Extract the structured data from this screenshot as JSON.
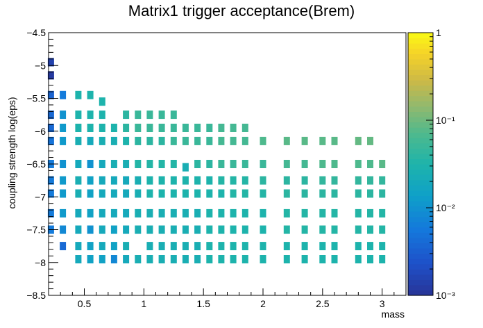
{
  "chart_data": {
    "type": "heatmap",
    "title": "Matrix1 trigger acceptance(Brem)",
    "xlabel": "mass",
    "ylabel": "coupling strength log(eps)",
    "xlim": [
      0.2,
      3.2
    ],
    "ylim": [
      -8.5,
      -4.5
    ],
    "x_ticks": [
      "0.5",
      "1",
      "1.5",
      "2",
      "2.5",
      "3"
    ],
    "x_tick_values": [
      0.5,
      1,
      1.5,
      2,
      2.5,
      3
    ],
    "y_ticks": [
      "−4.5",
      "−5",
      "−5.5",
      "−6",
      "−6.5",
      "−7",
      "−7.5",
      "−8",
      "−8.5"
    ],
    "y_tick_values": [
      -4.5,
      -5,
      -5.5,
      -6,
      -6.5,
      -7,
      -7.5,
      -8,
      -8.5
    ],
    "z_scale": "log",
    "zlim": [
      0.001,
      1
    ],
    "colorbar_ticks": [
      "10⁻³",
      "10⁻²",
      "10⁻¹",
      "1"
    ],
    "colorbar_tick_values": [
      0.001,
      0.01,
      0.1,
      1
    ],
    "cells": [
      [
        0.22,
        -4.95,
        0.0015
      ],
      [
        0.22,
        -5.15,
        0.0012
      ],
      [
        0.22,
        -5.45,
        0.0035
      ],
      [
        0.22,
        -5.75,
        0.004
      ],
      [
        0.22,
        -5.95,
        0.004
      ],
      [
        0.22,
        -6.15,
        0.005
      ],
      [
        0.22,
        -6.5,
        0.006
      ],
      [
        0.22,
        -6.75,
        0.006
      ],
      [
        0.22,
        -6.95,
        0.006
      ],
      [
        0.22,
        -7.25,
        0.006
      ],
      [
        0.22,
        -7.5,
        0.006
      ],
      [
        0.32,
        -5.45,
        0.006
      ],
      [
        0.32,
        -5.75,
        0.01
      ],
      [
        0.32,
        -5.95,
        0.012
      ],
      [
        0.32,
        -6.15,
        0.012
      ],
      [
        0.32,
        -6.5,
        0.01
      ],
      [
        0.32,
        -6.75,
        0.012
      ],
      [
        0.32,
        -6.95,
        0.012
      ],
      [
        0.32,
        -7.25,
        0.012
      ],
      [
        0.32,
        -7.5,
        0.008
      ],
      [
        0.32,
        -7.75,
        0.004
      ],
      [
        0.45,
        -5.45,
        0.03
      ],
      [
        0.45,
        -5.75,
        0.03
      ],
      [
        0.45,
        -5.95,
        0.03
      ],
      [
        0.45,
        -6.15,
        0.025
      ],
      [
        0.45,
        -6.5,
        0.02
      ],
      [
        0.45,
        -6.75,
        0.025
      ],
      [
        0.45,
        -6.95,
        0.025
      ],
      [
        0.45,
        -7.25,
        0.02
      ],
      [
        0.45,
        -7.5,
        0.02
      ],
      [
        0.45,
        -7.75,
        0.02
      ],
      [
        0.45,
        -7.95,
        0.02
      ],
      [
        0.55,
        -5.45,
        0.03
      ],
      [
        0.55,
        -5.75,
        0.03
      ],
      [
        0.55,
        -5.95,
        0.03
      ],
      [
        0.55,
        -6.15,
        0.02
      ],
      [
        0.55,
        -6.5,
        0.01
      ],
      [
        0.55,
        -6.75,
        0.015
      ],
      [
        0.55,
        -6.95,
        0.015
      ],
      [
        0.55,
        -7.25,
        0.015
      ],
      [
        0.55,
        -7.5,
        0.01
      ],
      [
        0.55,
        -7.75,
        0.015
      ],
      [
        0.55,
        -7.95,
        0.015
      ],
      [
        0.65,
        -5.55,
        0.03
      ],
      [
        0.65,
        -5.75,
        0.03
      ],
      [
        0.65,
        -5.95,
        0.03
      ],
      [
        0.65,
        -6.15,
        0.025
      ],
      [
        0.65,
        -6.5,
        0.02
      ],
      [
        0.65,
        -6.75,
        0.02
      ],
      [
        0.65,
        -6.95,
        0.02
      ],
      [
        0.65,
        -7.25,
        0.02
      ],
      [
        0.65,
        -7.5,
        0.02
      ],
      [
        0.65,
        -7.75,
        0.02
      ],
      [
        0.65,
        -7.95,
        0.015
      ],
      [
        0.75,
        -5.95,
        0.03
      ],
      [
        0.75,
        -6.15,
        0.025
      ],
      [
        0.75,
        -6.5,
        0.025
      ],
      [
        0.75,
        -6.75,
        0.02
      ],
      [
        0.75,
        -6.95,
        0.02
      ],
      [
        0.75,
        -7.25,
        0.02
      ],
      [
        0.75,
        -7.5,
        0.015
      ],
      [
        0.75,
        -7.75,
        0.015
      ],
      [
        0.75,
        -7.95,
        0.008
      ],
      [
        0.85,
        -5.75,
        0.04
      ],
      [
        0.85,
        -5.95,
        0.04
      ],
      [
        0.85,
        -6.15,
        0.03
      ],
      [
        0.85,
        -6.5,
        0.025
      ],
      [
        0.85,
        -6.75,
        0.02
      ],
      [
        0.85,
        -6.95,
        0.02
      ],
      [
        0.85,
        -7.25,
        0.02
      ],
      [
        0.85,
        -7.5,
        0.02
      ],
      [
        0.85,
        -7.75,
        0.025
      ],
      [
        0.85,
        -7.95,
        0.02
      ],
      [
        0.95,
        -5.75,
        0.05
      ],
      [
        0.95,
        -5.95,
        0.05
      ],
      [
        0.95,
        -6.15,
        0.04
      ],
      [
        0.95,
        -6.5,
        0.035
      ],
      [
        0.95,
        -6.75,
        0.025
      ],
      [
        0.95,
        -6.95,
        0.025
      ],
      [
        0.95,
        -7.25,
        0.025
      ],
      [
        0.95,
        -7.5,
        0.025
      ],
      [
        0.95,
        -7.95,
        0.025
      ],
      [
        1.05,
        -5.75,
        0.05
      ],
      [
        1.05,
        -5.95,
        0.05
      ],
      [
        1.05,
        -6.15,
        0.04
      ],
      [
        1.05,
        -6.5,
        0.035
      ],
      [
        1.05,
        -6.75,
        0.03
      ],
      [
        1.05,
        -6.95,
        0.03
      ],
      [
        1.05,
        -7.25,
        0.025
      ],
      [
        1.05,
        -7.5,
        0.025
      ],
      [
        1.05,
        -7.75,
        0.025
      ],
      [
        1.05,
        -7.95,
        0.025
      ],
      [
        1.15,
        -5.75,
        0.05
      ],
      [
        1.15,
        -5.95,
        0.05
      ],
      [
        1.15,
        -6.15,
        0.04
      ],
      [
        1.15,
        -6.5,
        0.035
      ],
      [
        1.15,
        -6.75,
        0.03
      ],
      [
        1.15,
        -6.95,
        0.03
      ],
      [
        1.15,
        -7.25,
        0.025
      ],
      [
        1.15,
        -7.5,
        0.025
      ],
      [
        1.15,
        -7.75,
        0.025
      ],
      [
        1.15,
        -7.95,
        0.025
      ],
      [
        1.25,
        -5.75,
        0.05
      ],
      [
        1.25,
        -5.95,
        0.05
      ],
      [
        1.25,
        -6.15,
        0.05
      ],
      [
        1.25,
        -6.5,
        0.035
      ],
      [
        1.25,
        -6.75,
        0.03
      ],
      [
        1.25,
        -6.95,
        0.03
      ],
      [
        1.25,
        -7.25,
        0.025
      ],
      [
        1.25,
        -7.5,
        0.025
      ],
      [
        1.25,
        -7.75,
        0.025
      ],
      [
        1.25,
        -7.95,
        0.025
      ],
      [
        1.35,
        -5.95,
        0.05
      ],
      [
        1.35,
        -6.15,
        0.05
      ],
      [
        1.35,
        -6.55,
        0.025
      ],
      [
        1.35,
        -6.75,
        0.03
      ],
      [
        1.35,
        -6.95,
        0.03
      ],
      [
        1.35,
        -7.25,
        0.025
      ],
      [
        1.35,
        -7.5,
        0.025
      ],
      [
        1.35,
        -7.75,
        0.025
      ],
      [
        1.35,
        -7.95,
        0.025
      ],
      [
        1.45,
        -5.95,
        0.05
      ],
      [
        1.45,
        -6.15,
        0.05
      ],
      [
        1.45,
        -6.5,
        0.04
      ],
      [
        1.45,
        -6.75,
        0.03
      ],
      [
        1.45,
        -6.95,
        0.03
      ],
      [
        1.45,
        -7.25,
        0.025
      ],
      [
        1.45,
        -7.5,
        0.025
      ],
      [
        1.45,
        -7.75,
        0.025
      ],
      [
        1.45,
        -7.95,
        0.025
      ],
      [
        1.55,
        -5.95,
        0.05
      ],
      [
        1.55,
        -6.15,
        0.05
      ],
      [
        1.55,
        -6.5,
        0.04
      ],
      [
        1.55,
        -6.75,
        0.03
      ],
      [
        1.55,
        -6.95,
        0.03
      ],
      [
        1.55,
        -7.25,
        0.03
      ],
      [
        1.55,
        -7.5,
        0.03
      ],
      [
        1.55,
        -7.75,
        0.03
      ],
      [
        1.55,
        -7.95,
        0.03
      ],
      [
        1.65,
        -5.95,
        0.06
      ],
      [
        1.65,
        -6.15,
        0.06
      ],
      [
        1.65,
        -6.5,
        0.05
      ],
      [
        1.65,
        -6.75,
        0.035
      ],
      [
        1.65,
        -6.95,
        0.03
      ],
      [
        1.65,
        -7.25,
        0.03
      ],
      [
        1.65,
        -7.5,
        0.03
      ],
      [
        1.65,
        -7.75,
        0.03
      ],
      [
        1.65,
        -7.95,
        0.03
      ],
      [
        1.75,
        -5.95,
        0.06
      ],
      [
        1.75,
        -6.15,
        0.06
      ],
      [
        1.75,
        -6.5,
        0.05
      ],
      [
        1.75,
        -6.75,
        0.035
      ],
      [
        1.75,
        -6.95,
        0.035
      ],
      [
        1.75,
        -7.25,
        0.03
      ],
      [
        1.75,
        -7.5,
        0.03
      ],
      [
        1.75,
        -7.75,
        0.03
      ],
      [
        1.75,
        -7.95,
        0.03
      ],
      [
        1.85,
        -5.95,
        0.06
      ],
      [
        1.85,
        -6.15,
        0.06
      ],
      [
        1.85,
        -6.5,
        0.05
      ],
      [
        1.85,
        -6.75,
        0.035
      ],
      [
        1.85,
        -6.95,
        0.035
      ],
      [
        1.85,
        -7.25,
        0.03
      ],
      [
        1.85,
        -7.5,
        0.03
      ],
      [
        1.85,
        -7.75,
        0.03
      ],
      [
        1.85,
        -7.95,
        0.03
      ],
      [
        2.0,
        -6.15,
        0.07
      ],
      [
        2.0,
        -6.5,
        0.05
      ],
      [
        2.0,
        -6.75,
        0.04
      ],
      [
        2.0,
        -6.95,
        0.035
      ],
      [
        2.0,
        -7.25,
        0.03
      ],
      [
        2.0,
        -7.5,
        0.03
      ],
      [
        2.0,
        -7.75,
        0.03
      ],
      [
        2.0,
        -7.95,
        0.03
      ],
      [
        2.2,
        -6.15,
        0.08
      ],
      [
        2.2,
        -6.5,
        0.06
      ],
      [
        2.2,
        -6.75,
        0.04
      ],
      [
        2.2,
        -6.95,
        0.04
      ],
      [
        2.2,
        -7.25,
        0.035
      ],
      [
        2.2,
        -7.5,
        0.035
      ],
      [
        2.2,
        -7.75,
        0.03
      ],
      [
        2.2,
        -7.95,
        0.03
      ],
      [
        2.35,
        -6.15,
        0.08
      ],
      [
        2.35,
        -6.5,
        0.06
      ],
      [
        2.35,
        -6.75,
        0.04
      ],
      [
        2.35,
        -6.95,
        0.04
      ],
      [
        2.35,
        -7.25,
        0.035
      ],
      [
        2.35,
        -7.5,
        0.035
      ],
      [
        2.35,
        -7.75,
        0.03
      ],
      [
        2.35,
        -7.95,
        0.03
      ],
      [
        2.5,
        -6.15,
        0.08
      ],
      [
        2.5,
        -6.5,
        0.07
      ],
      [
        2.5,
        -6.75,
        0.045
      ],
      [
        2.5,
        -6.95,
        0.04
      ],
      [
        2.5,
        -7.25,
        0.035
      ],
      [
        2.5,
        -7.5,
        0.035
      ],
      [
        2.5,
        -7.75,
        0.03
      ],
      [
        2.5,
        -7.95,
        0.03
      ],
      [
        2.6,
        -6.15,
        0.08
      ],
      [
        2.6,
        -6.5,
        0.07
      ],
      [
        2.6,
        -6.75,
        0.045
      ],
      [
        2.6,
        -6.95,
        0.04
      ],
      [
        2.6,
        -7.25,
        0.035
      ],
      [
        2.6,
        -7.5,
        0.035
      ],
      [
        2.6,
        -7.75,
        0.03
      ],
      [
        2.6,
        -7.95,
        0.03
      ],
      [
        2.8,
        -6.15,
        0.09
      ],
      [
        2.8,
        -6.5,
        0.07
      ],
      [
        2.8,
        -6.75,
        0.045
      ],
      [
        2.8,
        -6.95,
        0.04
      ],
      [
        2.8,
        -7.25,
        0.035
      ],
      [
        2.8,
        -7.5,
        0.035
      ],
      [
        2.8,
        -7.75,
        0.03
      ],
      [
        2.8,
        -7.95,
        0.03
      ],
      [
        2.9,
        -6.15,
        0.09
      ],
      [
        2.9,
        -6.5,
        0.07
      ],
      [
        2.9,
        -6.75,
        0.045
      ],
      [
        2.9,
        -6.95,
        0.04
      ],
      [
        2.9,
        -7.25,
        0.035
      ],
      [
        2.9,
        -7.5,
        0.035
      ],
      [
        2.9,
        -7.75,
        0.03
      ],
      [
        2.9,
        -7.95,
        0.03
      ],
      [
        3.0,
        -6.5,
        0.08
      ],
      [
        3.0,
        -6.75,
        0.045
      ],
      [
        3.0,
        -6.95,
        0.04
      ],
      [
        3.0,
        -7.25,
        0.035
      ],
      [
        3.0,
        -7.5,
        0.035
      ],
      [
        3.0,
        -7.75,
        0.03
      ],
      [
        3.0,
        -7.95,
        0.03
      ]
    ]
  }
}
